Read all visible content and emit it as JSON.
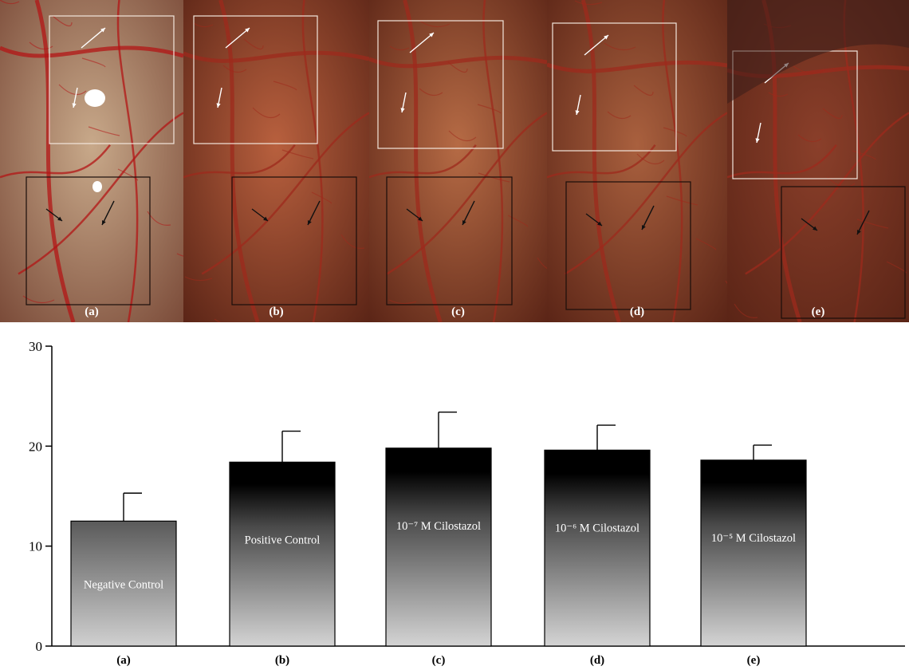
{
  "photo_panels": [
    {
      "label": "(a)",
      "tone": "#c8a98a"
    },
    {
      "label": "(b)",
      "tone": "#b8603e"
    },
    {
      "label": "(c)",
      "tone": "#b66b45"
    },
    {
      "label": "(d)",
      "tone": "#a9603e"
    },
    {
      "label": "(e)",
      "tone": "#8a3f2a"
    }
  ],
  "chart_data": {
    "type": "bar",
    "categories": [
      "(a)",
      "(b)",
      "(c)",
      "(d)",
      "(e)"
    ],
    "bar_labels": [
      "Negative Control",
      "Positive Control",
      "10⁻⁷ M Cilostazol",
      "10⁻⁶ M Cilostazol",
      "10⁻⁵ M Cilostazol"
    ],
    "values": [
      12.5,
      18.4,
      19.8,
      19.6,
      18.6
    ],
    "errors": [
      2.8,
      3.1,
      3.6,
      2.5,
      1.5
    ],
    "ylim": [
      0,
      30
    ],
    "yticks": [
      0,
      10,
      20,
      30
    ],
    "title": "",
    "xlabel": "",
    "ylabel": "",
    "colors": {
      "bar_top": "#000000",
      "bar_bottom": "#d4d4d4",
      "axis": "#000000"
    }
  }
}
